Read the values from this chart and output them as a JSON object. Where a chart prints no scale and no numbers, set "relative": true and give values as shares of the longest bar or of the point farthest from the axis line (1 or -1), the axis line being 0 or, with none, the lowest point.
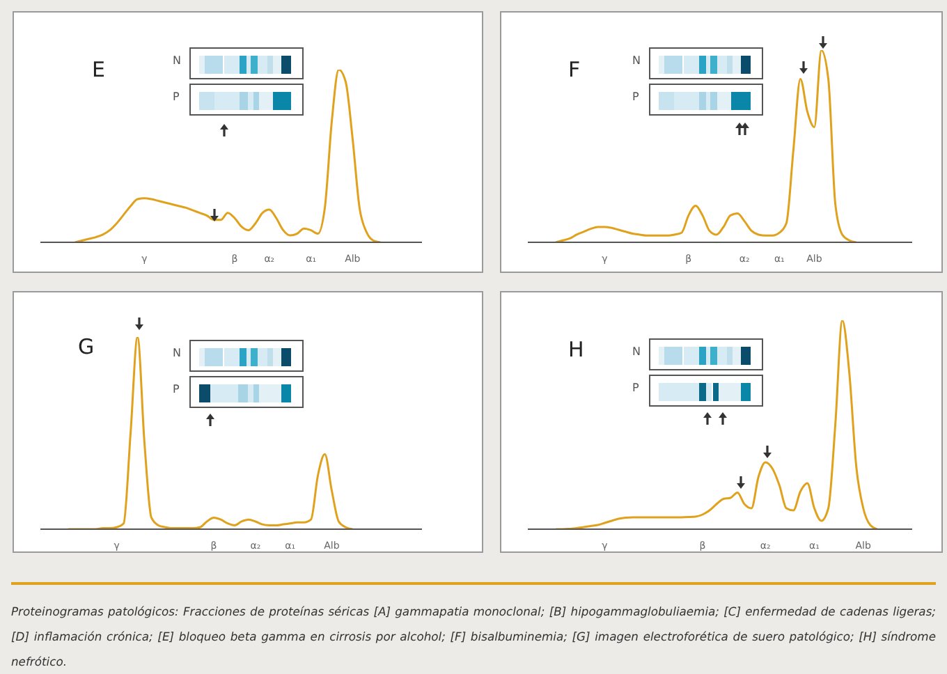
{
  "chart_data": [
    {
      "type": "line",
      "title": "E",
      "relative": true,
      "color": "#e0a21c",
      "annotations": [
        "N",
        "P"
      ],
      "categories": [
        null,
        null,
        null,
        null,
        null,
        null,
        null,
        null,
        null,
        null,
        null,
        null,
        null,
        null,
        null,
        "γ",
        null,
        null,
        null,
        null,
        null,
        null,
        null,
        null,
        null,
        null,
        null,
        null,
        "β",
        null,
        null,
        null,
        null,
        "α₂",
        null,
        null,
        null,
        null,
        null,
        "α₁",
        null,
        null,
        null,
        null,
        null,
        "Alb",
        null,
        null,
        null,
        null,
        null,
        null,
        null,
        null,
        null,
        null
      ],
      "values": [
        null,
        null,
        null,
        null,
        null,
        0,
        0.01,
        0.02,
        0.03,
        0.045,
        0.07,
        0.11,
        0.16,
        0.21,
        0.25,
        0.255,
        0.25,
        0.24,
        0.23,
        0.22,
        0.21,
        0.2,
        0.185,
        0.17,
        0.155,
        0.13,
        0.13,
        0.17,
        0.14,
        0.09,
        0.07,
        0.11,
        0.17,
        0.19,
        0.14,
        0.07,
        0.04,
        0.05,
        0.08,
        0.07,
        0.05,
        0.2,
        0.7,
        1,
        0.93,
        0.6,
        0.2,
        0.06,
        0.01,
        0,
        null,
        null,
        null,
        null,
        null,
        null
      ]
    },
    {
      "type": "line",
      "title": "F",
      "relative": true,
      "color": "#e0a21c",
      "annotations": [
        "N",
        "P"
      ],
      "categories": [
        null,
        null,
        null,
        null,
        null,
        null,
        null,
        null,
        null,
        null,
        null,
        "γ",
        null,
        null,
        null,
        null,
        null,
        null,
        null,
        null,
        null,
        null,
        null,
        "β",
        null,
        null,
        null,
        null,
        null,
        null,
        null,
        "α₂",
        null,
        null,
        null,
        null,
        "α₁",
        null,
        null,
        null,
        null,
        "Alb",
        null,
        null,
        null,
        null,
        null,
        null,
        null,
        null,
        null,
        null,
        null,
        null,
        null,
        null
      ],
      "values": [
        null,
        null,
        null,
        null,
        0,
        0.01,
        0.02,
        0.04,
        0.055,
        0.07,
        0.08,
        0.08,
        0.075,
        0.065,
        0.055,
        0.045,
        0.04,
        0.035,
        0.035,
        0.035,
        0.035,
        0.04,
        0.05,
        0.14,
        0.19,
        0.14,
        0.06,
        0.04,
        0.08,
        0.14,
        0.15,
        0.11,
        0.06,
        0.04,
        0.035,
        0.035,
        0.05,
        0.1,
        0.48,
        0.85,
        0.68,
        0.6,
        1,
        0.85,
        0.2,
        0.04,
        0.01,
        0,
        null,
        null,
        null,
        null,
        null,
        null,
        null,
        null
      ]
    },
    {
      "type": "line",
      "title": "G",
      "relative": true,
      "color": "#e0a21c",
      "annotations": [
        "N",
        "P"
      ],
      "categories": [
        null,
        null,
        null,
        null,
        null,
        null,
        null,
        null,
        null,
        null,
        null,
        "γ",
        null,
        null,
        null,
        null,
        null,
        null,
        null,
        null,
        null,
        null,
        null,
        null,
        null,
        "β",
        null,
        null,
        null,
        null,
        null,
        "α₂",
        null,
        null,
        null,
        null,
        "α₁",
        null,
        null,
        null,
        null,
        null,
        "Alb",
        null,
        null,
        null,
        null,
        null,
        null,
        null,
        null,
        null,
        null,
        null,
        null,
        null
      ],
      "values": [
        null,
        null,
        null,
        null,
        0,
        0,
        0,
        0,
        0,
        0.005,
        0.005,
        0.01,
        0.03,
        0.5,
        1,
        0.45,
        0.06,
        0.02,
        0.01,
        0.005,
        0.005,
        0.005,
        0.005,
        0.01,
        0.04,
        0.06,
        0.05,
        0.03,
        0.02,
        0.04,
        0.05,
        0.04,
        0.025,
        0.02,
        0.02,
        0.025,
        0.03,
        0.035,
        0.035,
        0.05,
        0.28,
        0.39,
        0.2,
        0.04,
        0.01,
        0,
        null,
        null,
        null,
        null,
        null,
        null,
        null,
        null,
        null,
        null
      ]
    },
    {
      "type": "line",
      "title": "H",
      "relative": true,
      "color": "#e0a21c",
      "annotations": [
        "N",
        "P"
      ],
      "categories": [
        null,
        null,
        null,
        null,
        null,
        null,
        null,
        null,
        null,
        null,
        null,
        "γ",
        null,
        null,
        null,
        null,
        null,
        null,
        null,
        null,
        null,
        null,
        null,
        null,
        null,
        "β",
        null,
        null,
        null,
        null,
        null,
        null,
        null,
        null,
        "α₂",
        null,
        null,
        null,
        null,
        null,
        null,
        "α₁",
        null,
        null,
        null,
        null,
        null,
        null,
        "Alb",
        null,
        null,
        null,
        null,
        null,
        null,
        null
      ],
      "values": [
        null,
        null,
        null,
        null,
        0,
        0,
        0.002,
        0.005,
        0.01,
        0.015,
        0.02,
        0.03,
        0.04,
        0.05,
        0.055,
        0.057,
        0.057,
        0.057,
        0.057,
        0.057,
        0.057,
        0.057,
        0.057,
        0.058,
        0.06,
        0.07,
        0.09,
        0.12,
        0.145,
        0.15,
        0.175,
        0.12,
        0.1,
        0.25,
        0.32,
        0.29,
        0.21,
        0.1,
        0.09,
        0.18,
        0.22,
        0.1,
        0.04,
        0.1,
        0.5,
        1,
        0.75,
        0.3,
        0.1,
        0.02,
        0,
        null,
        null,
        null,
        null,
        null
      ]
    },
    {
      "type": "other",
      "annotations": [
        "Proteinogramas patológicos: Fracciones de proteínas séricas [A] gammapatia monoclonal; [B] hipogammaglobuliaemia; [C] enfermedad de cadenas ligeras; [D] inflamación crónica; [E] bloqueo beta gamma en cirrosis por alcohol; [F] bisalbuminemia; [G] imagen electroforética de suero patológico; [H] síndrome nefrótico."
      ]
    }
  ]
}
